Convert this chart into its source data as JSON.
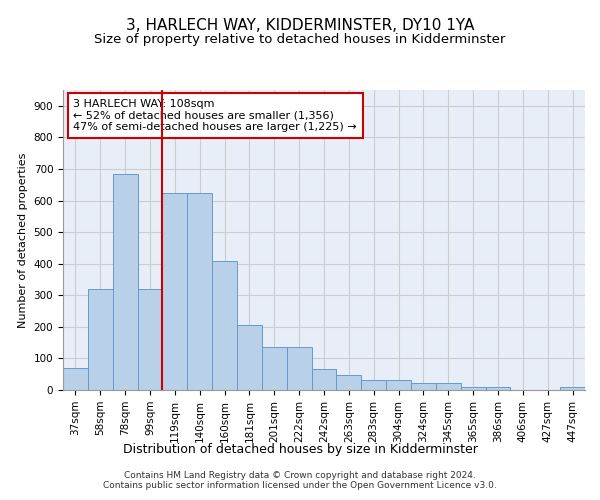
{
  "title": "3, HARLECH WAY, KIDDERMINSTER, DY10 1YA",
  "subtitle": "Size of property relative to detached houses in Kidderminster",
  "xlabel": "Distribution of detached houses by size in Kidderminster",
  "ylabel": "Number of detached properties",
  "categories": [
    "37sqm",
    "58sqm",
    "78sqm",
    "99sqm",
    "119sqm",
    "140sqm",
    "160sqm",
    "181sqm",
    "201sqm",
    "222sqm",
    "242sqm",
    "263sqm",
    "283sqm",
    "304sqm",
    "324sqm",
    "345sqm",
    "365sqm",
    "386sqm",
    "406sqm",
    "427sqm",
    "447sqm"
  ],
  "values": [
    70,
    320,
    685,
    320,
    625,
    625,
    410,
    207,
    137,
    137,
    68,
    47,
    33,
    33,
    22,
    22,
    11,
    8,
    0,
    0,
    8
  ],
  "bar_color": "#b8d0e8",
  "bar_edgecolor": "#6699cc",
  "vline_x": 3.5,
  "vline_color": "#cc0000",
  "annotation_text": "3 HARLECH WAY: 108sqm\n← 52% of detached houses are smaller (1,356)\n47% of semi-detached houses are larger (1,225) →",
  "annotation_box_color": "#ffffff",
  "annotation_box_edgecolor": "#cc0000",
  "ylim": [
    0,
    950
  ],
  "yticks": [
    0,
    100,
    200,
    300,
    400,
    500,
    600,
    700,
    800,
    900
  ],
  "grid_color": "#cccccc",
  "background_color": "#e8eef8",
  "fig_background": "#ffffff",
  "footer": "Contains HM Land Registry data © Crown copyright and database right 2024.\nContains public sector information licensed under the Open Government Licence v3.0.",
  "title_fontsize": 11,
  "subtitle_fontsize": 9.5,
  "xlabel_fontsize": 9,
  "ylabel_fontsize": 8,
  "tick_fontsize": 7.5,
  "annotation_fontsize": 8,
  "footer_fontsize": 6.5
}
